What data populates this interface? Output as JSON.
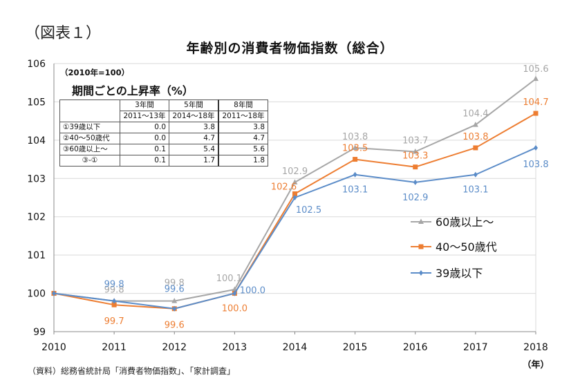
{
  "figure_label": "（図表１）",
  "source_note": "（資料）総務省統計局「消費者物価指数」、「家計調査」",
  "colors": {
    "s60": "#a6a6a6",
    "s4050": "#ed7d31",
    "s39": "#5b8cc8",
    "grid": "#d9d9d9",
    "axis": "#888888"
  },
  "rate_table": {
    "base_note": "（2010年=100）",
    "title": "期間ごとの上昇率（%）",
    "headers": [
      {
        "line1": "3年間",
        "line2": "2011～13年"
      },
      {
        "line1": "5年間",
        "line2": "2014～18年"
      },
      {
        "line1": "8年間",
        "line2": "2011～18年"
      }
    ],
    "rows": [
      {
        "label": "①39歳以下",
        "values": [
          "0.0",
          "3.8",
          "3.8"
        ]
      },
      {
        "label": "②40～50歳代",
        "values": [
          "0.0",
          "4.7",
          "4.7"
        ]
      },
      {
        "label": "③60歳以上～",
        "values": [
          "0.1",
          "5.4",
          "5.6"
        ]
      },
      {
        "label": "③-①",
        "values": [
          "0.1",
          "1.7",
          "1.8"
        ]
      }
    ]
  },
  "chart_data": {
    "type": "line",
    "title": "年齢別の消費者物価指数（総合）",
    "xlabel": "（年）",
    "ylabel": "",
    "x": [
      2010,
      2011,
      2012,
      2013,
      2014,
      2015,
      2016,
      2017,
      2018
    ],
    "ylim": [
      99,
      106
    ],
    "yticks": [
      99,
      100,
      101,
      102,
      103,
      104,
      105,
      106
    ],
    "grid": true,
    "legend_position": "right",
    "series": [
      {
        "name": "60歳以上～",
        "color": "#a6a6a6",
        "marker": "triangle",
        "values": [
          100.0,
          99.8,
          99.8,
          100.1,
          102.9,
          103.8,
          103.7,
          104.4,
          105.6
        ],
        "labels": [
          "",
          "99.8",
          "99.8",
          "100.1",
          "102.9",
          "103.8",
          "103.7",
          "104.4",
          "105.6"
        ]
      },
      {
        "name": "40～50歳代",
        "color": "#ed7d31",
        "marker": "square",
        "values": [
          100.0,
          99.7,
          99.6,
          100.0,
          102.6,
          103.5,
          103.3,
          103.8,
          104.7
        ],
        "labels": [
          "",
          "99.7",
          "99.6",
          "100.0",
          "102.6",
          "103.5",
          "103.3",
          "103.8",
          "104.7"
        ]
      },
      {
        "name": "39歳以下",
        "color": "#5b8cc8",
        "marker": "diamond",
        "values": [
          100.0,
          99.8,
          99.6,
          100.0,
          102.5,
          103.1,
          102.9,
          103.1,
          103.8
        ],
        "labels": [
          "",
          "99.8",
          "99.6",
          "100.0",
          "102.5",
          "103.1",
          "102.9",
          "103.1",
          "103.8"
        ]
      }
    ]
  }
}
